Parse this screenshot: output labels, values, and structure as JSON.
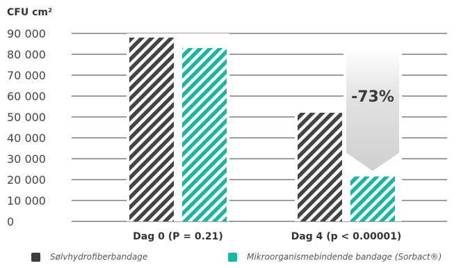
{
  "chart_data": {
    "type": "bar",
    "ylabel": "CFU cm²",
    "yticks": [
      "90 000",
      "80 000",
      "70 000",
      "60 000",
      "50 000",
      "40 000",
      "30 000",
      "20 000",
      "10 000",
      "0"
    ],
    "ylim": [
      0,
      90000
    ],
    "categories": [
      "Dag 0 (P = 0.21)",
      "Dag 4 (p < 0.00001)"
    ],
    "series": [
      {
        "name": "Sølvhydrofiberbandage",
        "values": [
          88000,
          52000
        ],
        "color": "#444444",
        "pattern": "diagonal-stripes"
      },
      {
        "name": "Mikroorganismebindende bandage (Sorbact®)",
        "values": [
          83000,
          21500
        ],
        "color": "#1bb5a4",
        "pattern": "diagonal-stripes"
      }
    ],
    "annotation": {
      "text": "-73%",
      "category": "Dag 4 (p < 0.00001)"
    },
    "grid": true,
    "legend_position": "bottom"
  }
}
